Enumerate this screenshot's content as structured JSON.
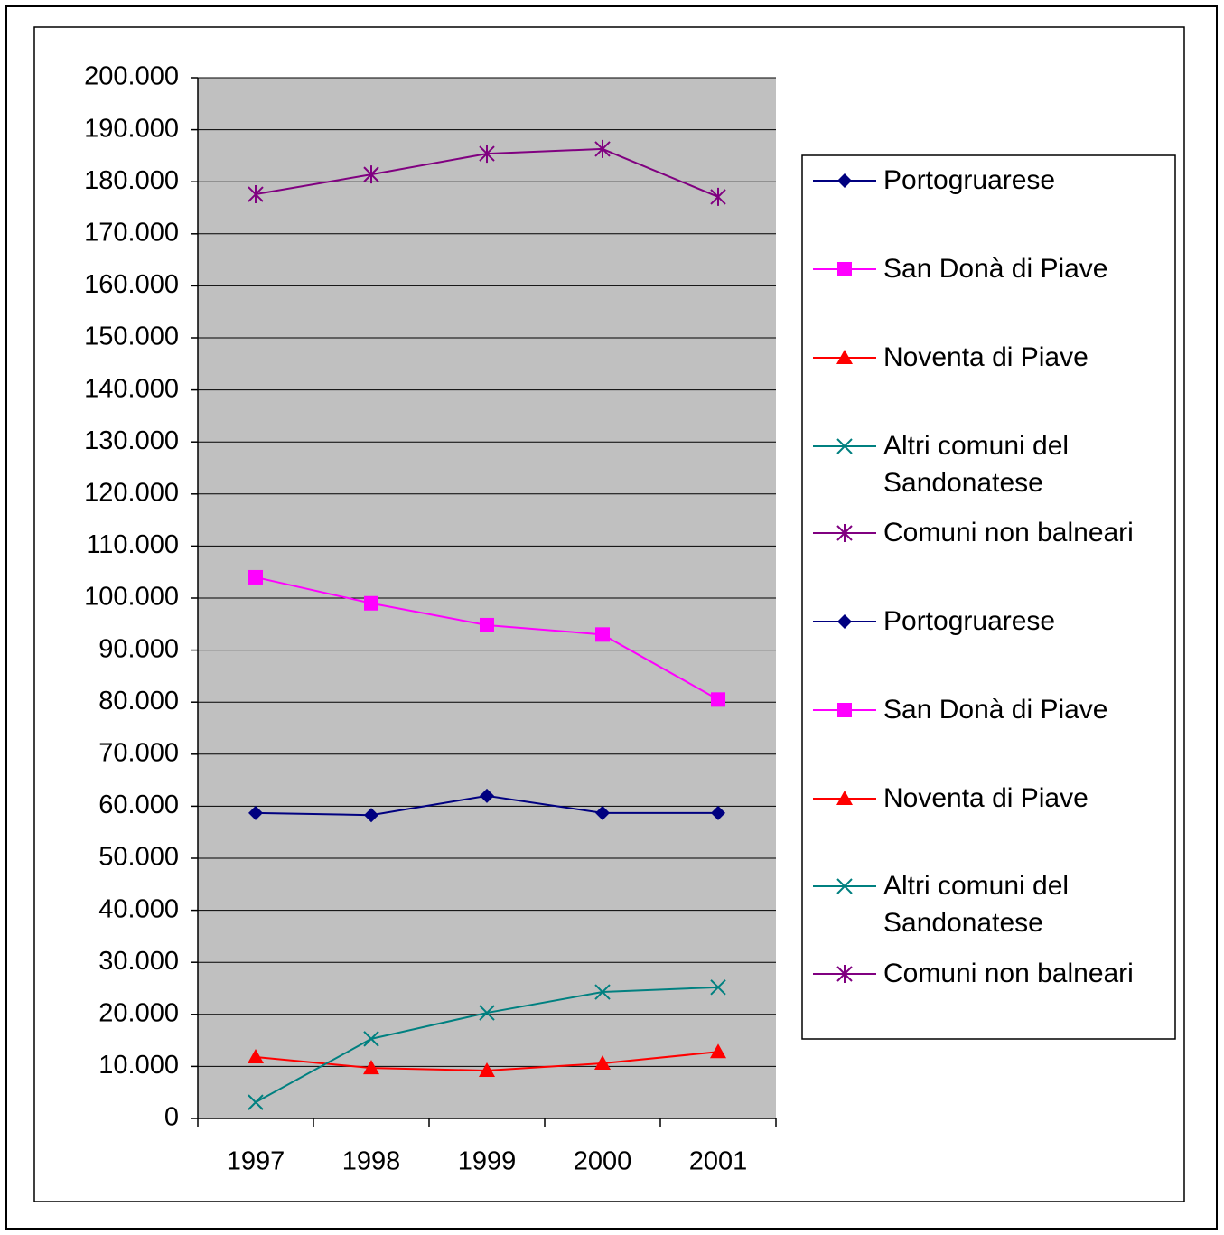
{
  "chart_data": {
    "type": "line",
    "categories": [
      "1997",
      "1998",
      "1999",
      "2000",
      "2001"
    ],
    "series": [
      {
        "name": "Portogruarese",
        "color": "#000080",
        "marker": "diamond",
        "values": [
          58700,
          58300,
          62000,
          58700,
          58700
        ]
      },
      {
        "name": "San Donà di Piave",
        "color": "#ff00ff",
        "marker": "square",
        "values": [
          104000,
          99000,
          94800,
          93000,
          80500
        ]
      },
      {
        "name": "Noventa di Piave",
        "color": "#ff0000",
        "marker": "triangle",
        "values": [
          11800,
          9700,
          9200,
          10600,
          12800
        ]
      },
      {
        "name": "Altri comuni del Sandonatese",
        "color": "#008080",
        "marker": "x",
        "values": [
          3100,
          15300,
          20300,
          24300,
          25200
        ]
      },
      {
        "name": "Comuni non balneari",
        "color": "#800080",
        "marker": "star",
        "values": [
          177600,
          181400,
          185400,
          186300,
          177100
        ]
      }
    ],
    "legend": [
      "Portogruarese",
      "San Donà di Piave",
      "Noventa di Piave",
      "Altri comuni del Sandonatese",
      "Comuni non balneari",
      "Portogruarese",
      "San Donà di Piave",
      "Noventa di Piave",
      "Altri comuni del Sandonatese",
      "Comuni non balneari"
    ],
    "ylim": [
      0,
      200000
    ],
    "yticks": [
      0,
      {
        "value": 10000,
        "label": "10.000"
      },
      {
        "value": 20000,
        "label": "20.000"
      },
      {
        "value": 30000,
        "label": "30.000"
      },
      {
        "value": 40000,
        "label": "40.000"
      },
      {
        "value": 50000,
        "label": "50.000"
      },
      {
        "value": 60000,
        "label": "60.000"
      },
      {
        "value": 70000,
        "label": "70.000"
      },
      {
        "value": 80000,
        "label": "80.000"
      },
      {
        "value": 90000,
        "label": "90.000"
      },
      {
        "value": 100000,
        "label": "100.000"
      },
      {
        "value": 110000,
        "label": "110.000"
      },
      {
        "value": 120000,
        "label": "120.000"
      },
      {
        "value": 130000,
        "label": "130.000"
      },
      {
        "value": 140000,
        "label": "140.000"
      },
      {
        "value": 150000,
        "label": "150.000"
      },
      {
        "value": 160000,
        "label": "160.000"
      },
      {
        "value": 170000,
        "label": "170.000"
      },
      {
        "value": 180000,
        "label": "180.000"
      },
      {
        "value": 190000,
        "label": "190.000"
      },
      {
        "value": 200000,
        "label": "200.000"
      }
    ],
    "grid": true,
    "plot_background": "#c0c0c0"
  }
}
